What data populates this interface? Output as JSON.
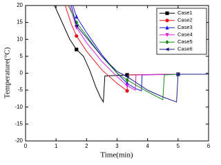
{
  "chart_data": {
    "type": "line",
    "x_label": "Time(min)",
    "y_label": "Temperature(°C)",
    "xlim": [
      0,
      6
    ],
    "xticks": [
      0,
      1,
      2,
      3,
      4,
      5,
      6
    ],
    "ylim": [
      -20,
      20
    ],
    "yticks": [
      -20,
      -15,
      -10,
      -5,
      0,
      5,
      10,
      15,
      20
    ],
    "grid": false,
    "legend": "upper right",
    "marker_x": [
      1.67,
      3.33,
      5
    ],
    "series": [
      {
        "name": "Case1",
        "color": "#000000",
        "marker": "square",
        "x": [
          0.95,
          1.2,
          1.45,
          1.67,
          1.9,
          2.1,
          2.3,
          2.45,
          2.55,
          2.6,
          3.33,
          4,
          5,
          6
        ],
        "values": [
          20,
          15,
          10,
          7,
          5,
          1,
          -4,
          -7,
          -8.5,
          -0.8,
          -0.5,
          -0.4,
          -0.3,
          -0.3
        ]
      },
      {
        "name": "Case2",
        "color": "#e8141c",
        "marker": "circle",
        "x": [
          1.3,
          1.5,
          1.67,
          2,
          2.5,
          3,
          3.33,
          3.36,
          4,
          5,
          6
        ],
        "values": [
          20,
          14.5,
          11,
          6.5,
          1,
          -3,
          -5.2,
          -0.5,
          -0.4,
          -0.3,
          -0.3
        ]
      },
      {
        "name": "Case3",
        "color": "#1a1adc",
        "marker": "triangle-up",
        "x": [
          1.55,
          1.67,
          2,
          2.5,
          3,
          3.33,
          3.6,
          3.8,
          3.82,
          5,
          6
        ],
        "values": [
          20,
          16.7,
          12,
          5.5,
          0,
          -3,
          -4.5,
          -5.2,
          -0.5,
          -0.3,
          -0.3
        ]
      },
      {
        "name": "Case4",
        "color": "#e01ee0",
        "marker": "triangle-down",
        "x": [
          1.45,
          1.67,
          2,
          2.5,
          3,
          3.33,
          3.6,
          3.62,
          5,
          6
        ],
        "values": [
          20,
          13.5,
          9,
          3.5,
          -1,
          -3.7,
          -5,
          -0.5,
          -0.3,
          -0.3
        ]
      },
      {
        "name": "Case5",
        "color": "#148c14",
        "marker": "diamond",
        "x": [
          1.4,
          1.67,
          2,
          2.5,
          3,
          3.33,
          4,
          4.5,
          4.55,
          5,
          6
        ],
        "values": [
          20,
          15,
          11,
          5,
          0,
          -2,
          -5.5,
          -7.8,
          -0.5,
          -0.3,
          -0.3
        ]
      },
      {
        "name": "Case6",
        "color": "#1a1a8c",
        "marker": "triangle-left",
        "x": [
          1.5,
          1.67,
          2,
          2.5,
          3,
          3.33,
          4,
          4.5,
          4.95,
          5,
          6
        ],
        "values": [
          20,
          14,
          10.5,
          5,
          0.5,
          -1,
          -5,
          -7,
          -8.5,
          -0.3,
          -0.3
        ]
      }
    ]
  }
}
